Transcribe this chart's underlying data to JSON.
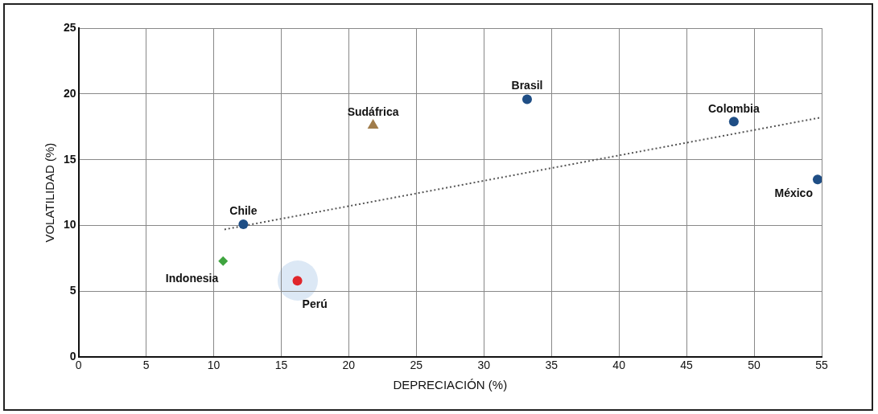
{
  "chart_data": {
    "type": "scatter",
    "xlabel": "DEPRECIACIÓN (%)",
    "ylabel": "VOLATILIDAD (%)",
    "xlim": [
      0,
      55
    ],
    "xticks": [
      0,
      5,
      10,
      15,
      20,
      25,
      30,
      35,
      40,
      45,
      50,
      55
    ],
    "ylim": [
      0,
      25
    ],
    "yticks": [
      0,
      5,
      10,
      15,
      20,
      25
    ],
    "grid": true,
    "legend": false,
    "series": [
      {
        "name": "Chile",
        "color": "#1f4e85",
        "marker": "circle",
        "x": [
          12.2
        ],
        "values": [
          10.1
        ]
      },
      {
        "name": "Indonesia",
        "color": "#3fa43f",
        "marker": "diamond",
        "x": [
          10.7
        ],
        "values": [
          7.3
        ]
      },
      {
        "name": "Perú",
        "color": "#e0262b",
        "marker": "circle",
        "x": [
          16.2
        ],
        "values": [
          5.8
        ]
      },
      {
        "name": "Sudáfrica",
        "color": "#a07c4a",
        "marker": "triangle",
        "x": [
          21.8
        ],
        "values": [
          17.6
        ]
      },
      {
        "name": "Brasil",
        "color": "#1f4e85",
        "marker": "circle",
        "x": [
          33.2
        ],
        "values": [
          19.6
        ]
      },
      {
        "name": "Colombia",
        "color": "#1f4e85",
        "marker": "circle",
        "x": [
          48.5
        ],
        "values": [
          17.9
        ]
      },
      {
        "name": "México",
        "color": "#1f4e85",
        "marker": "circle",
        "x": [
          54.7
        ],
        "values": [
          13.5
        ]
      },
      {
        "type": "line",
        "color": "#555555",
        "marker": "none",
        "line_style": "dotted",
        "x": [
          10.8,
          54.9
        ],
        "values": [
          9.7,
          18.2
        ]
      }
    ]
  }
}
